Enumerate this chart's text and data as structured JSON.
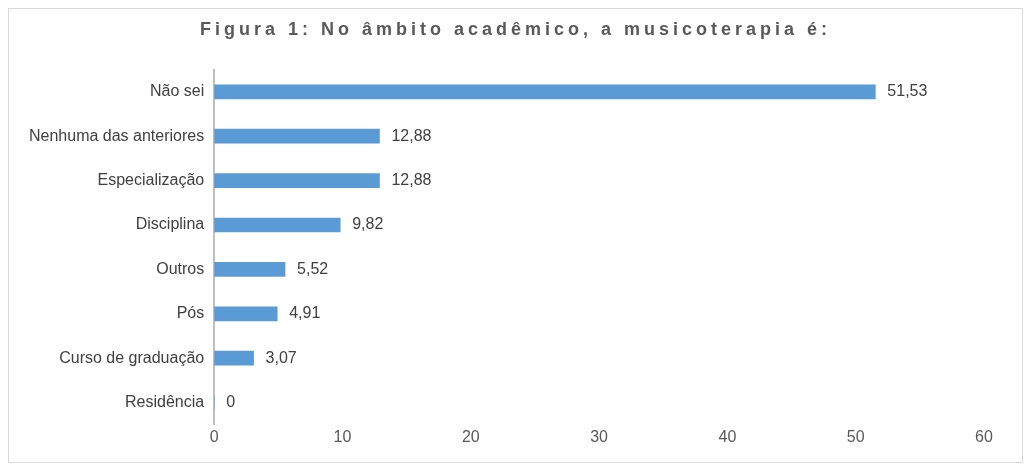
{
  "chart_data": {
    "type": "bar",
    "orientation": "horizontal",
    "title": "Figura 1: No âmbito acadêmico, a musicoterapia é:",
    "categories": [
      "Não sei",
      "Nenhuma das anteriores",
      "Especialização",
      "Disciplina",
      "Outros",
      "Pós",
      "Curso de graduação",
      "Residência"
    ],
    "values": [
      51.53,
      12.88,
      12.88,
      9.82,
      5.52,
      4.91,
      3.07,
      0
    ],
    "value_labels": [
      "51,53",
      "12,88",
      "12,88",
      "9,82",
      "5,52",
      "4,91",
      "3,07",
      "0"
    ],
    "color": "#5b9bd5",
    "xlim": [
      0,
      60
    ],
    "xticks": [
      0,
      10,
      20,
      30,
      40,
      50,
      60
    ],
    "grid": false,
    "legend": false
  }
}
